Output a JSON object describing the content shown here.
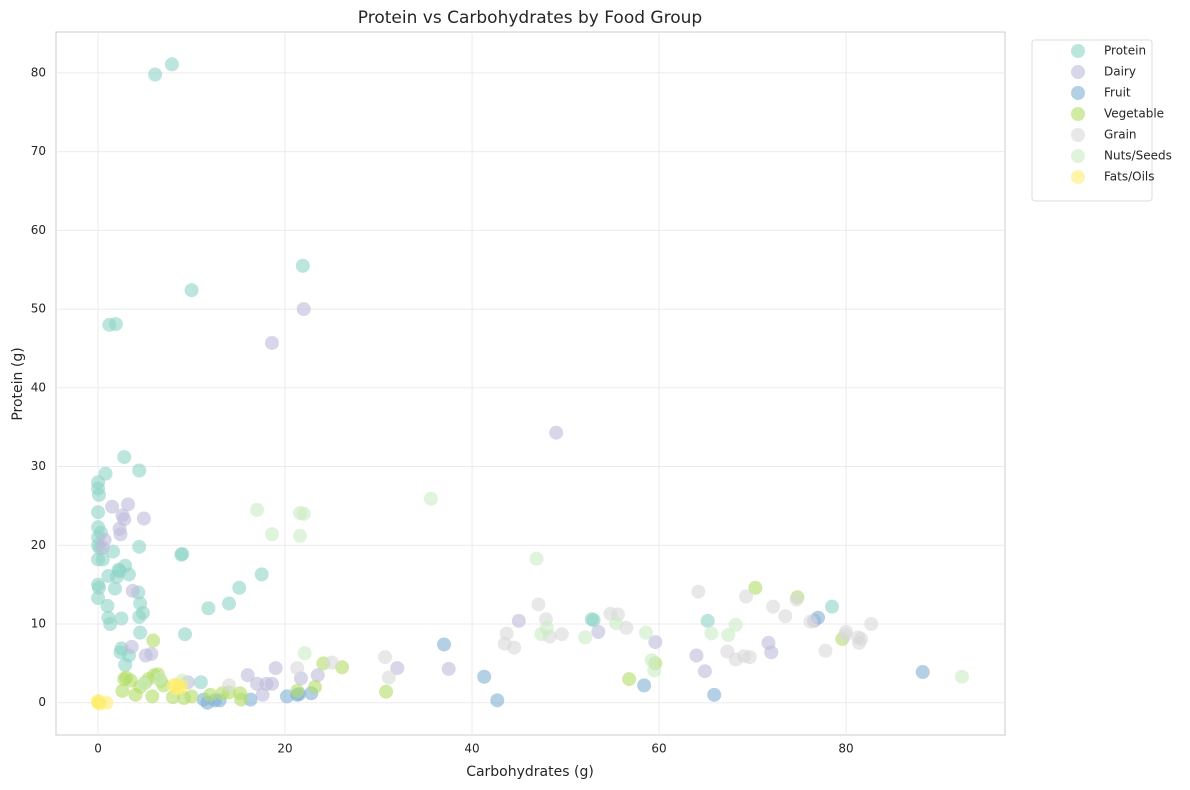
{
  "chart_data": {
    "type": "scatter",
    "title": "Protein vs Carbohydrates by Food Group",
    "x_label": "Carbohydrates (g)",
    "y_label": "Protein (g)",
    "xlim": [
      -4.5,
      97
    ],
    "ylim": [
      -4.1,
      85.2
    ],
    "xticks": [
      0,
      20,
      40,
      60,
      80
    ],
    "yticks": [
      0,
      10,
      20,
      30,
      40,
      50,
      60,
      70,
      80
    ],
    "grid": true,
    "legend": "outside-right",
    "opacity": 0.6,
    "series": [
      {
        "name": "Protein",
        "color": "#8dd3c7",
        "x": [
          6.1,
          7.9,
          21.9,
          10.0,
          1.2,
          1.9,
          2.8,
          4.4,
          0.8,
          0,
          0,
          0.1,
          0,
          0,
          0.3,
          0,
          0,
          0.2,
          4.4,
          1.6,
          0,
          0.5,
          9,
          8.9,
          2.9,
          2.2,
          2.3,
          17.5,
          1.1,
          2,
          3.3,
          0,
          0.1,
          1.8,
          15.1,
          4.3,
          4.5,
          14,
          1,
          11.8,
          4.8,
          1.1,
          2.5,
          4.4,
          0,
          1.3,
          4.5,
          9.3,
          2.5,
          2.4,
          3.3,
          2.9,
          53,
          52.8,
          65.2,
          78.5,
          11.0
        ],
        "values": [
          79.8,
          81.1,
          55.5,
          52.4,
          48.0,
          48.1,
          31.2,
          29.5,
          29.1,
          28,
          27.2,
          26.4,
          24.2,
          22.3,
          21.6,
          21,
          20,
          19.6,
          19.8,
          19.2,
          18.2,
          18.2,
          18.9,
          18.8,
          17.4,
          16.9,
          16.7,
          16.3,
          16.1,
          16,
          16.3,
          15,
          14.6,
          14.5,
          14.6,
          14,
          12.6,
          12.6,
          12.3,
          12,
          11.4,
          10.8,
          10.7,
          10.9,
          13.3,
          10.0,
          8.9,
          8.7,
          6.9,
          6.4,
          6.0,
          4.8,
          10.5,
          10.6,
          10.4,
          12.2,
          2.6
        ]
      },
      {
        "name": "Dairy",
        "color": "#bebada",
        "x": [
          22,
          18.6,
          49,
          1.5,
          3.2,
          2.6,
          2.8,
          4.9,
          2.3,
          2.4,
          0.7,
          0.5,
          3.7,
          3.6,
          5.1,
          5.7,
          9.6,
          16,
          17,
          17.6,
          18,
          18.6,
          19,
          21.7,
          23.5,
          32,
          37.5,
          45,
          53.5,
          59.6,
          64,
          64.9,
          71.7,
          72,
          76.6
        ],
        "values": [
          50.0,
          45.7,
          34.3,
          24.9,
          25.2,
          23.8,
          23.3,
          23.4,
          22.1,
          21.4,
          20.7,
          19.7,
          14.2,
          7.1,
          6.0,
          6.2,
          2.6,
          3.5,
          2.4,
          1.0,
          2.4,
          2.4,
          4.4,
          3.1,
          3.5,
          4.4,
          4.3,
          10.4,
          9.0,
          7.7,
          6.0,
          4.0,
          7.6,
          6.4,
          10.4
        ]
      },
      {
        "name": "Fruit",
        "color": "#80b1d3",
        "x": [
          37,
          41.3,
          42.7,
          58.4,
          65.9,
          77,
          88.2,
          11.7,
          12.5,
          13,
          16.3,
          20.2,
          21.3,
          21.5,
          22.8,
          11.3
        ],
        "values": [
          7.4,
          3.3,
          0.3,
          2.2,
          1.0,
          10.8,
          3.9,
          0.0,
          0.3,
          0.3,
          0.4,
          0.8,
          1.0,
          1.1,
          1.2,
          0.4
        ]
      },
      {
        "name": "Vegetable",
        "color": "#b3de69",
        "x": [
          70.3,
          74.8,
          79.6,
          59.6,
          56.8,
          30.8,
          24.1,
          26.1,
          23.2,
          21.3,
          5.9,
          2.8,
          3.0,
          2.6,
          4,
          5,
          5.4,
          6,
          6.4,
          5.8,
          4.5,
          7,
          8,
          9.2,
          10,
          12,
          13.3,
          14,
          15.2,
          15.3,
          3.5,
          6.7
        ],
        "values": [
          14.6,
          13.4,
          8.1,
          5.0,
          3.0,
          1.4,
          5.0,
          4.5,
          2.0,
          1.5,
          7.9,
          3,
          3.2,
          1.5,
          1.0,
          2.5,
          3.0,
          3.5,
          3.6,
          0.8,
          2.0,
          2.2,
          0.7,
          0.6,
          0.8,
          1.0,
          1.2,
          1.3,
          1.2,
          0.4,
          2.8,
          2.8
        ]
      },
      {
        "name": "Grain",
        "color": "#d9d9d9",
        "x": [
          64.2,
          69.3,
          72.2,
          73.5,
          74.7,
          76.2,
          79.9,
          80,
          81.3,
          81.6,
          81.4,
          82.7,
          77.8,
          68.2,
          69.1,
          69.7,
          67.3,
          55.6,
          54.8,
          56.5,
          47.9,
          47.1,
          49.6,
          48.3,
          43.7,
          43.5,
          44.5,
          30.7,
          31.1,
          14,
          21.3,
          25
        ],
        "values": [
          14.1,
          13.5,
          12.2,
          11.0,
          13.1,
          10.3,
          8.6,
          9.0,
          8.3,
          8.1,
          7.6,
          10,
          6.6,
          5.5,
          5.9,
          5.8,
          6.5,
          11.2,
          11.3,
          9.5,
          10.6,
          12.5,
          8.7,
          8.4,
          8.8,
          7.5,
          7.0,
          5.8,
          3.2,
          2.2,
          4.4,
          5.1
        ]
      },
      {
        "name": "Nuts/Seeds",
        "color": "#ccebc5",
        "x": [
          35.6,
          46.9,
          17,
          21.6,
          22,
          18.6,
          21.6,
          22.1,
          47.4,
          52.1,
          55.4,
          58.6,
          59.2,
          59.5,
          65.6,
          67.4,
          68.2,
          92.4,
          48,
          4.9,
          6.6,
          9
        ],
        "values": [
          25.9,
          18.3,
          24.5,
          24.1,
          24.0,
          21.4,
          21.2,
          6.3,
          8.7,
          8.3,
          10.1,
          8.9,
          5.4,
          4.1,
          8.8,
          8.6,
          9.9,
          3.3,
          9.5,
          2.4,
          3.0,
          2.8
        ]
      },
      {
        "name": "Fats/Oils",
        "color": "#ffed6f",
        "x": [
          0,
          0,
          0.1,
          0.2,
          0.9,
          8.1,
          8.4,
          8.9,
          8.4,
          8.7
        ],
        "values": [
          0.2,
          0,
          0.1,
          -0.1,
          0,
          2.2,
          1.8,
          2.1,
          2.3,
          1.9
        ]
      }
    ]
  }
}
